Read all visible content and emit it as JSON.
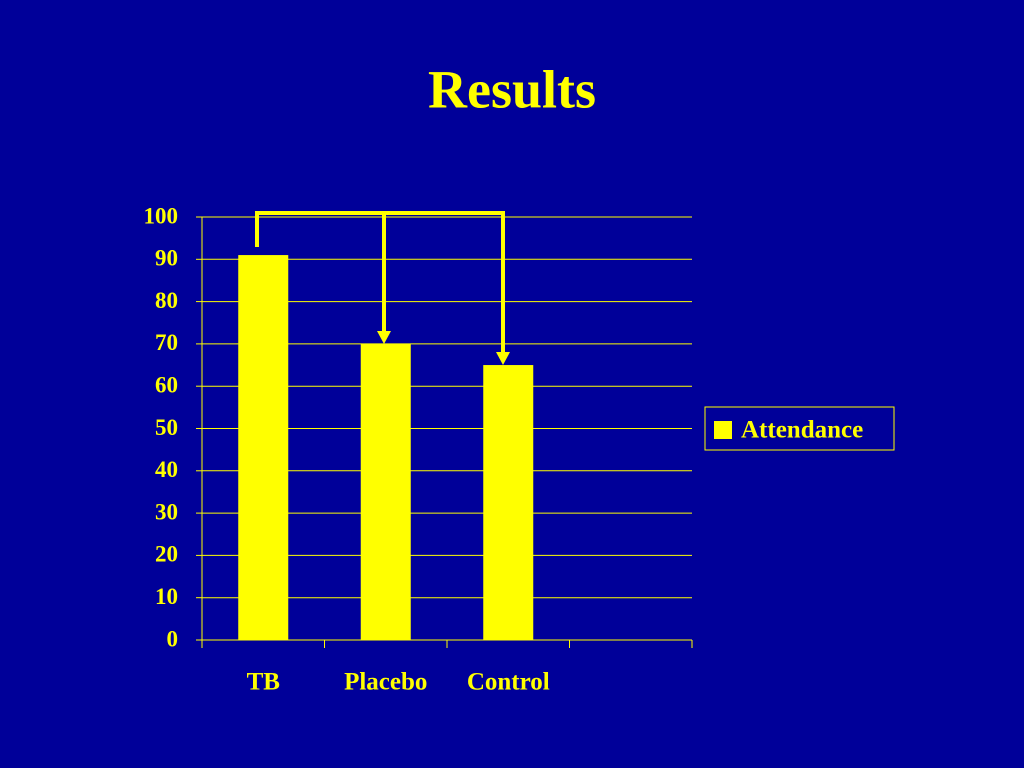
{
  "chart_data": {
    "type": "bar",
    "title": "Results",
    "categories": [
      "TB",
      "Placebo",
      "Control",
      null
    ],
    "series": [
      {
        "name": "Attendance",
        "color": "#ffff00",
        "values": [
          91,
          70,
          65,
          null
        ]
      }
    ],
    "ylim": [
      0,
      100
    ],
    "yticks": [
      0,
      10,
      20,
      30,
      40,
      50,
      60,
      70,
      80,
      90,
      100
    ],
    "grid": true,
    "legend": "right"
  }
}
